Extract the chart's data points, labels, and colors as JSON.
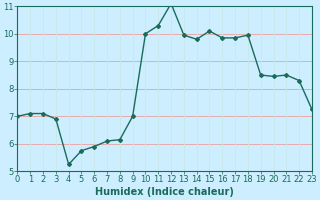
{
  "x": [
    0,
    1,
    2,
    3,
    4,
    5,
    6,
    7,
    8,
    9,
    10,
    11,
    12,
    13,
    14,
    15,
    16,
    17,
    18,
    19,
    20,
    21,
    22,
    23
  ],
  "y": [
    7.0,
    7.1,
    7.1,
    6.9,
    5.25,
    5.75,
    5.9,
    6.1,
    6.15,
    7.0,
    10.0,
    10.3,
    11.1,
    9.95,
    9.8,
    10.1,
    9.85,
    9.85,
    9.95,
    8.5,
    8.45,
    8.5,
    8.3,
    7.25
  ],
  "line_color": "#1a6b5a",
  "marker": "D",
  "marker_size": 2.0,
  "bg_color": "#cceeff",
  "grid_color_h": "#e8a0a0",
  "grid_color_v": "#c8e8e8",
  "xlabel": "Humidex (Indice chaleur)",
  "xlim": [
    0,
    23
  ],
  "ylim": [
    5,
    11
  ],
  "yticks": [
    5,
    6,
    7,
    8,
    9,
    10,
    11
  ],
  "xticks": [
    0,
    1,
    2,
    3,
    4,
    5,
    6,
    7,
    8,
    9,
    10,
    11,
    12,
    13,
    14,
    15,
    16,
    17,
    18,
    19,
    20,
    21,
    22,
    23
  ],
  "xlabel_fontsize": 7,
  "tick_fontsize": 6,
  "line_width": 1.0
}
